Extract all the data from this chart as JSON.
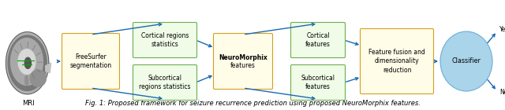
{
  "title": "Fig. 1: Proposed framework for seizure recurrence prediction using proposed NeuroMorphix features.",
  "title_fontsize": 6.0,
  "background_color": "#ffffff",
  "arrow_color": "#1a6ab5",
  "arrow_lw": 1.0,
  "mri_label": "MRI",
  "boxes": {
    "freesurfer": {
      "label": "FreeSurfer\nsegmentation",
      "border": "#d4a020",
      "fill": "#fffce8"
    },
    "cortical_stat": {
      "label": "Cortical regions\nstatistics",
      "border": "#6ab04c",
      "fill": "#f0fbe8"
    },
    "subcortical_stat": {
      "label": "Subcortical\nregions statistics",
      "border": "#6ab04c",
      "fill": "#f0fbe8"
    },
    "neuromorphix_line1": "NeuroMorphix",
    "neuromorphix_line2": "features",
    "neuromorphix": {
      "label": "NeuroMorphix\nfeatures",
      "border": "#d4a020",
      "fill": "#fffce8"
    },
    "cortical_feat": {
      "label": "Cortical\nfeatures",
      "border": "#6ab04c",
      "fill": "#f0fbe8"
    },
    "subcortical_feat": {
      "label": "Subcortical\nfeatures",
      "border": "#6ab04c",
      "fill": "#f0fbe8"
    },
    "fusion": {
      "label": "Feature fusion and\ndimensionality\nreduction",
      "border": "#d4a020",
      "fill": "#fffce8"
    },
    "classifier": {
      "label": "Classifier",
      "border": "#6aaed6",
      "fill": "#aad4ea"
    }
  },
  "yes_label": "Yes",
  "no_label": "No"
}
